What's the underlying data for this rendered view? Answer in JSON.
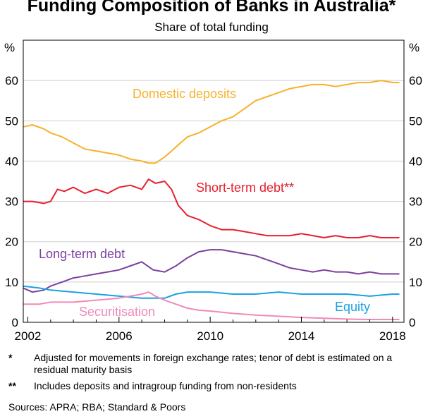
{
  "header": {
    "title": "Funding Composition of Banks in Australia*",
    "subtitle": "Share of total funding"
  },
  "footer": {
    "notes": [
      {
        "mark": "*",
        "text": "Adjusted for movements in foreign exchange rates; tenor of debt is estimated on a residual maturity basis"
      },
      {
        "mark": "**",
        "text": "Includes deposits and intragroup funding from non-residents"
      }
    ],
    "sources": "Sources: APRA; RBA; Standard & Poors"
  },
  "chart_data": {
    "type": "line",
    "title": "Funding Composition of Banks in Australia*",
    "subtitle": "Share of total funding",
    "ylabel_left": "%",
    "ylabel_right": "%",
    "xlim": [
      2001.8,
      2018.5
    ],
    "ylim": [
      0,
      70
    ],
    "yticks": [
      0,
      10,
      20,
      30,
      40,
      50,
      60
    ],
    "xticks": [
      2002,
      2006,
      2010,
      2014,
      2018
    ],
    "grid": true,
    "series": [
      {
        "name": "Domestic deposits",
        "color": "#f5b22b",
        "x": [
          2001.8,
          2002.2,
          2002.7,
          2003.0,
          2003.5,
          2004.0,
          2004.5,
          2005.0,
          2005.5,
          2006.0,
          2006.5,
          2007.0,
          2007.3,
          2007.6,
          2008.0,
          2008.5,
          2009.0,
          2009.5,
          2010.0,
          2010.5,
          2011.0,
          2011.5,
          2012.0,
          2012.5,
          2013.0,
          2013.5,
          2014.0,
          2014.5,
          2015.0,
          2015.5,
          2016.0,
          2016.5,
          2017.0,
          2017.5,
          2018.0,
          2018.3
        ],
        "values": [
          48.5,
          49,
          48,
          47,
          46,
          44.5,
          43,
          42.5,
          42,
          41.5,
          40.5,
          40,
          39.5,
          39.5,
          41,
          43.5,
          46,
          47,
          48.5,
          50,
          51,
          53,
          55,
          56,
          57,
          58,
          58.5,
          59,
          59,
          58.5,
          59,
          59.5,
          59.5,
          60,
          59.5,
          59.5
        ],
        "label": "Domestic deposits"
      },
      {
        "name": "Short-term debt**",
        "color": "#e8202e",
        "x": [
          2001.8,
          2002.2,
          2002.7,
          2003.0,
          2003.3,
          2003.6,
          2004.0,
          2004.5,
          2005.0,
          2005.5,
          2006.0,
          2006.5,
          2007.0,
          2007.3,
          2007.6,
          2008.0,
          2008.3,
          2008.6,
          2009.0,
          2009.5,
          2010.0,
          2010.5,
          2011.0,
          2011.5,
          2012.0,
          2012.5,
          2013.0,
          2013.5,
          2014.0,
          2014.5,
          2015.0,
          2015.5,
          2016.0,
          2016.5,
          2017.0,
          2017.5,
          2018.0,
          2018.3
        ],
        "values": [
          30,
          30,
          29.5,
          30,
          33,
          32.5,
          33.5,
          32,
          33,
          32,
          33.5,
          34,
          33,
          35.5,
          34.5,
          35,
          33,
          29,
          26.5,
          25.5,
          24,
          23,
          23,
          22.5,
          22,
          21.5,
          21.5,
          21.5,
          22,
          21.5,
          21,
          21.5,
          21,
          21,
          21.5,
          21,
          21,
          21
        ],
        "label": "Short-term debt**"
      },
      {
        "name": "Long-term debt",
        "color": "#7b3fa0",
        "x": [
          2001.8,
          2002.2,
          2002.7,
          2003.0,
          2003.5,
          2004.0,
          2004.5,
          2005.0,
          2005.5,
          2006.0,
          2006.5,
          2007.0,
          2007.5,
          2008.0,
          2008.5,
          2009.0,
          2009.5,
          2010.0,
          2010.5,
          2011.0,
          2011.5,
          2012.0,
          2012.5,
          2013.0,
          2013.5,
          2014.0,
          2014.5,
          2015.0,
          2015.5,
          2016.0,
          2016.5,
          2017.0,
          2017.5,
          2018.0,
          2018.3
        ],
        "values": [
          8.5,
          7.5,
          8,
          9,
          10,
          11,
          11.5,
          12,
          12.5,
          13,
          14,
          15,
          13,
          12.5,
          14,
          16,
          17.5,
          18,
          18,
          17.5,
          17,
          16.5,
          15.5,
          14.5,
          13.5,
          13,
          12.5,
          13,
          12.5,
          12.5,
          12,
          12.5,
          12,
          12,
          12
        ],
        "label": "Long-term debt"
      },
      {
        "name": "Equity",
        "color": "#1ba1e2",
        "x": [
          2001.8,
          2002.5,
          2003.0,
          2004.0,
          2005.0,
          2006.0,
          2007.0,
          2007.5,
          2008.0,
          2008.5,
          2009.0,
          2010.0,
          2011.0,
          2012.0,
          2013.0,
          2014.0,
          2015.0,
          2016.0,
          2017.0,
          2018.0,
          2018.3
        ],
        "values": [
          9,
          8.5,
          8,
          7.5,
          7,
          6.5,
          6,
          6,
          6,
          7,
          7.5,
          7.5,
          7,
          7,
          7.5,
          7,
          7,
          7,
          6.5,
          7,
          7
        ],
        "label": "Equity"
      },
      {
        "name": "Securitisation",
        "color": "#f08ab8",
        "x": [
          2001.8,
          2002.5,
          2003.0,
          2004.0,
          2005.0,
          2006.0,
          2006.5,
          2007.0,
          2007.3,
          2007.6,
          2008.0,
          2008.5,
          2009.0,
          2009.5,
          2010.0,
          2011.0,
          2012.0,
          2013.0,
          2014.0,
          2015.0,
          2016.0,
          2017.0,
          2018.0,
          2018.3
        ],
        "values": [
          4.5,
          4.5,
          5,
          5,
          5.5,
          6,
          6.5,
          7,
          7.5,
          6.5,
          5.5,
          4.5,
          3.5,
          3,
          2.8,
          2.2,
          1.8,
          1.5,
          1.2,
          1,
          0.8,
          0.7,
          0.7,
          0.7
        ],
        "label": "Securitisation"
      }
    ]
  }
}
